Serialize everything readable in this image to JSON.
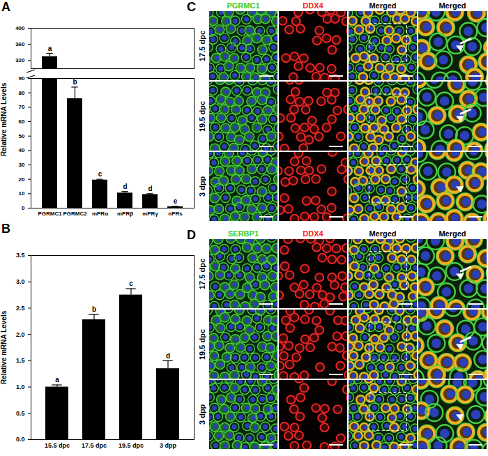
{
  "chart_data": [
    {
      "type": "bar",
      "panel_label": "A",
      "categories": [
        "PGRMC1",
        "PGRMC2",
        "mPRα",
        "mPRβ",
        "mPRγ",
        "nPRs"
      ],
      "values": [
        330,
        76,
        19.5,
        10.5,
        9.5,
        1
      ],
      "errors": [
        8,
        8,
        0.5,
        1,
        0.5,
        0.3
      ],
      "letters": [
        "a",
        "b",
        "c",
        "d",
        "d",
        "e"
      ],
      "ylabel": "Relative mRNA Levels",
      "color": "#000000",
      "ylim": [
        0,
        400
      ],
      "ybreak": [
        90,
        300
      ],
      "yticks": [
        0,
        10,
        20,
        30,
        40,
        50,
        60,
        70,
        80,
        90,
        320,
        360,
        400
      ]
    },
    {
      "type": "bar",
      "panel_label": "B",
      "categories": [
        "15.5 dpc",
        "17.5 dpc",
        "19.5 dpc",
        "3 dpp"
      ],
      "values": [
        1.0,
        2.28,
        2.75,
        1.35
      ],
      "errors": [
        0.04,
        0.1,
        0.12,
        0.15
      ],
      "letters": [
        "a",
        "b",
        "c",
        "d"
      ],
      "ylabel": "Relative mRNA Levels",
      "color": "#000000",
      "ylim": [
        0,
        3.5
      ],
      "yticks": [
        {
          "value": 0,
          "label": "0.0"
        },
        0.5,
        {
          "value": 1,
          "label": "1.0"
        },
        1.5,
        {
          "value": 2,
          "label": "2.0"
        },
        2.5,
        {
          "value": 3,
          "label": "3.0"
        },
        3.5
      ]
    }
  ],
  "image_panels": [
    {
      "panel_label": "C",
      "columns": [
        {
          "label": "PGRMC1",
          "color": "#33cc33"
        },
        {
          "label": "DDX4",
          "color": "#ff2020"
        },
        {
          "label": "Merged",
          "color": "#000000"
        },
        {
          "label": "Merged",
          "color": "#000000"
        }
      ],
      "rows": [
        "17.5 dpc",
        "19.5 dpc",
        "3 dpp"
      ],
      "markers": [
        "arrow",
        "arrow",
        "arrowhead"
      ]
    },
    {
      "panel_label": "D",
      "columns": [
        {
          "label": "SERBP1",
          "color": "#33cc33"
        },
        {
          "label": "DDX4",
          "color": "#ff2020"
        },
        {
          "label": "Merged",
          "color": "#000000"
        },
        {
          "label": "Merged",
          "color": "#000000"
        }
      ],
      "rows": [
        "17.5 dpc",
        "19.5 dpc",
        "3 dpp"
      ],
      "markers": [
        "arrow",
        "arrow",
        "arrowhead"
      ]
    }
  ]
}
